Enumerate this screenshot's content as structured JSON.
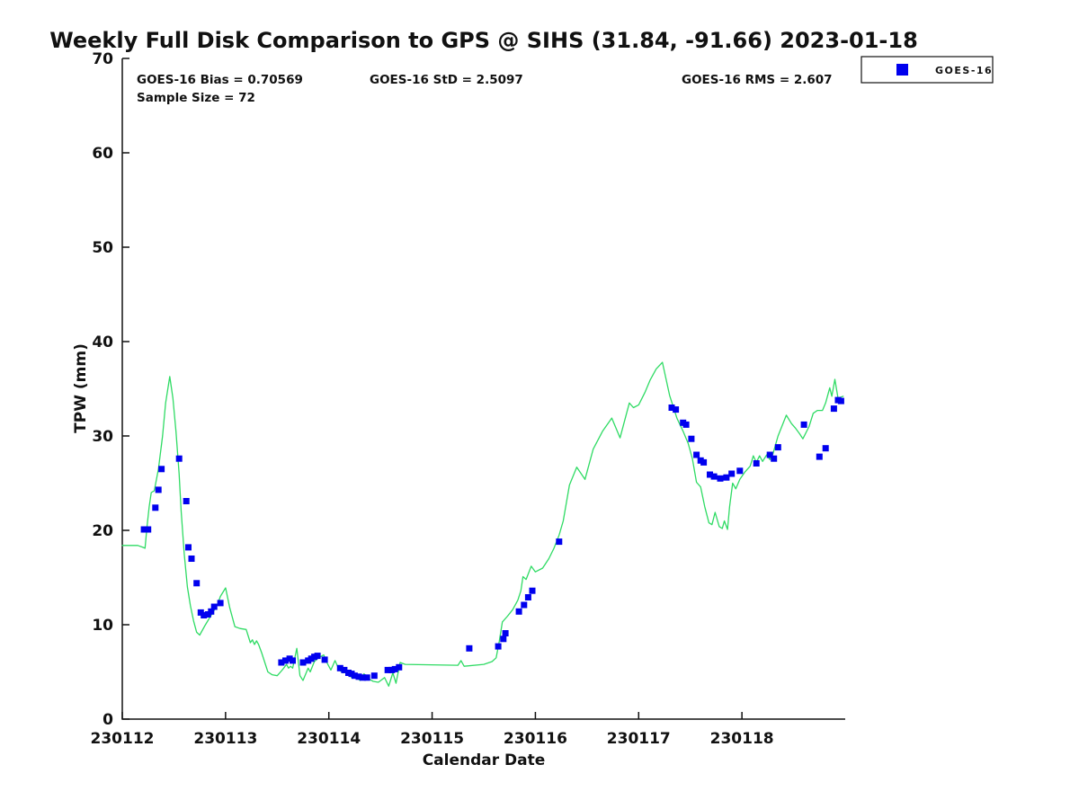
{
  "figure": {
    "stats": {
      "bias": "GOES-16 Bias = 0.70569",
      "std": "GOES-16 StD = 2.5097",
      "rms": "GOES-16 RMS = 2.607",
      "sample_size": "Sample Size = 72"
    },
    "legend": {
      "label": "GOES-16",
      "marker_color": "#0000EE"
    }
  },
  "chart_data": {
    "type": "line+scatter",
    "title": "Weekly Full Disk Comparison to GPS @ SIHS (31.84, -91.66) 2023-01-18",
    "xlabel": "Calendar Date",
    "ylabel": "TPW (mm)",
    "xlim": [
      230112,
      230119
    ],
    "ylim": [
      0,
      70
    ],
    "xticks": [
      230112,
      230113,
      230114,
      230115,
      230116,
      230117,
      230118
    ],
    "yticks": [
      0,
      10,
      20,
      30,
      40,
      50,
      60,
      70
    ],
    "grid": false,
    "legend_position": "top-right-outside",
    "annotations": {
      "bias": "GOES-16 Bias = 0.70569",
      "std": "GOES-16 StD = 2.5097",
      "rms": "GOES-16 RMS = 2.607",
      "sample_size": "Sample Size = 72"
    },
    "series": [
      {
        "name": "GPS",
        "type": "line",
        "color": "#2FDB64",
        "line_width": 1.3,
        "points": [
          [
            230112.0,
            18.4
          ],
          [
            230112.15,
            18.4
          ],
          [
            230112.2,
            18.2
          ],
          [
            230112.22,
            18.1
          ],
          [
            230112.24,
            20.5
          ],
          [
            230112.26,
            22.5
          ],
          [
            230112.28,
            24.0
          ],
          [
            230112.31,
            24.2
          ],
          [
            230112.35,
            26.5
          ],
          [
            230112.39,
            30.0
          ],
          [
            230112.42,
            33.5
          ],
          [
            230112.46,
            36.3
          ],
          [
            230112.49,
            34.0
          ],
          [
            230112.52,
            30.5
          ],
          [
            230112.55,
            26.0
          ],
          [
            230112.57,
            22.0
          ],
          [
            230112.6,
            17.5
          ],
          [
            230112.63,
            14.0
          ],
          [
            230112.66,
            12.0
          ],
          [
            230112.69,
            10.4
          ],
          [
            230112.72,
            9.2
          ],
          [
            230112.75,
            8.9
          ],
          [
            230112.8,
            9.9
          ],
          [
            230112.86,
            11.0
          ],
          [
            230112.92,
            12.1
          ],
          [
            230112.95,
            13.0
          ],
          [
            230113.0,
            13.9
          ],
          [
            230113.04,
            11.8
          ],
          [
            230113.09,
            9.8
          ],
          [
            230113.14,
            9.6
          ],
          [
            230113.2,
            9.5
          ],
          [
            230113.24,
            8.1
          ],
          [
            230113.26,
            8.4
          ],
          [
            230113.28,
            7.9
          ],
          [
            230113.3,
            8.3
          ],
          [
            230113.32,
            7.9
          ],
          [
            230113.35,
            7.0
          ],
          [
            230113.38,
            6.0
          ],
          [
            230113.41,
            5.0
          ],
          [
            230113.45,
            4.7
          ],
          [
            230113.5,
            4.6
          ],
          [
            230113.54,
            5.1
          ],
          [
            230113.57,
            5.5
          ],
          [
            230113.59,
            5.8
          ],
          [
            230113.61,
            5.4
          ],
          [
            230113.63,
            5.6
          ],
          [
            230113.65,
            5.4
          ],
          [
            230113.69,
            7.5
          ],
          [
            230113.72,
            4.6
          ],
          [
            230113.75,
            4.1
          ],
          [
            230113.8,
            5.4
          ],
          [
            230113.82,
            5.0
          ],
          [
            230113.86,
            6.1
          ],
          [
            230113.9,
            6.5
          ],
          [
            230113.95,
            6.8
          ],
          [
            230113.99,
            5.8
          ],
          [
            230114.02,
            5.2
          ],
          [
            230114.06,
            6.2
          ],
          [
            230114.1,
            5.2
          ],
          [
            230114.14,
            4.9
          ],
          [
            230114.18,
            5.0
          ],
          [
            230114.22,
            4.4
          ],
          [
            230114.26,
            4.6
          ],
          [
            230114.3,
            4.1
          ],
          [
            230114.34,
            4.8
          ],
          [
            230114.38,
            4.3
          ],
          [
            230114.43,
            4.0
          ],
          [
            230114.48,
            3.9
          ],
          [
            230114.54,
            4.4
          ],
          [
            230114.58,
            3.5
          ],
          [
            230114.62,
            4.9
          ],
          [
            230114.65,
            3.8
          ],
          [
            230114.69,
            6.0
          ],
          [
            230114.74,
            5.8
          ],
          [
            230115.25,
            5.7
          ],
          [
            230115.28,
            6.2
          ],
          [
            230115.31,
            5.6
          ],
          [
            230115.5,
            5.8
          ],
          [
            230115.58,
            6.1
          ],
          [
            230115.62,
            6.5
          ],
          [
            230115.65,
            8.2
          ],
          [
            230115.68,
            10.3
          ],
          [
            230115.73,
            10.9
          ],
          [
            230115.78,
            11.6
          ],
          [
            230115.83,
            12.6
          ],
          [
            230115.86,
            13.6
          ],
          [
            230115.88,
            15.1
          ],
          [
            230115.91,
            14.8
          ],
          [
            230115.96,
            16.2
          ],
          [
            230116.0,
            15.6
          ],
          [
            230116.07,
            16.0
          ],
          [
            230116.13,
            17.0
          ],
          [
            230116.18,
            18.1
          ],
          [
            230116.23,
            19.5
          ],
          [
            230116.27,
            21.0
          ],
          [
            230116.33,
            24.8
          ],
          [
            230116.4,
            26.7
          ],
          [
            230116.48,
            25.4
          ],
          [
            230116.56,
            28.6
          ],
          [
            230116.65,
            30.5
          ],
          [
            230116.74,
            31.9
          ],
          [
            230116.82,
            29.8
          ],
          [
            230116.91,
            33.5
          ],
          [
            230116.95,
            33.0
          ],
          [
            230117.0,
            33.3
          ],
          [
            230117.06,
            34.6
          ],
          [
            230117.11,
            35.9
          ],
          [
            230117.17,
            37.1
          ],
          [
            230117.23,
            37.8
          ],
          [
            230117.3,
            34.3
          ],
          [
            230117.37,
            31.9
          ],
          [
            230117.43,
            30.5
          ],
          [
            230117.48,
            29.2
          ],
          [
            230117.52,
            27.6
          ],
          [
            230117.56,
            25.1
          ],
          [
            230117.6,
            24.6
          ],
          [
            230117.64,
            22.5
          ],
          [
            230117.68,
            20.8
          ],
          [
            230117.71,
            20.6
          ],
          [
            230117.74,
            21.9
          ],
          [
            230117.78,
            20.4
          ],
          [
            230117.81,
            20.2
          ],
          [
            230117.83,
            21.0
          ],
          [
            230117.86,
            20.1
          ],
          [
            230117.88,
            22.5
          ],
          [
            230117.91,
            25.0
          ],
          [
            230117.94,
            24.4
          ],
          [
            230117.98,
            25.4
          ],
          [
            230118.03,
            26.2
          ],
          [
            230118.08,
            26.8
          ],
          [
            230118.11,
            27.9
          ],
          [
            230118.14,
            27.2
          ],
          [
            230118.17,
            27.9
          ],
          [
            230118.2,
            27.3
          ],
          [
            230118.24,
            28.0
          ],
          [
            230118.27,
            27.5
          ],
          [
            230118.3,
            28.1
          ],
          [
            230118.35,
            30.0
          ],
          [
            230118.43,
            32.2
          ],
          [
            230118.48,
            31.3
          ],
          [
            230118.52,
            30.8
          ],
          [
            230118.56,
            30.2
          ],
          [
            230118.59,
            29.7
          ],
          [
            230118.65,
            31.0
          ],
          [
            230118.69,
            32.4
          ],
          [
            230118.73,
            32.7
          ],
          [
            230118.78,
            32.7
          ],
          [
            230118.81,
            33.5
          ],
          [
            230118.85,
            35.1
          ],
          [
            230118.87,
            34.2
          ],
          [
            230118.9,
            36.0
          ],
          [
            230118.93,
            34.0
          ],
          [
            230118.98,
            34.2
          ]
        ]
      },
      {
        "name": "GOES-16",
        "type": "scatter",
        "marker": "square",
        "marker_size": 7,
        "color": "#0000EE",
        "points": [
          [
            230112.21,
            20.1
          ],
          [
            230112.25,
            20.1
          ],
          [
            230112.32,
            22.4
          ],
          [
            230112.35,
            24.3
          ],
          [
            230112.38,
            26.5
          ],
          [
            230112.55,
            27.6
          ],
          [
            230112.62,
            23.1
          ],
          [
            230112.64,
            18.2
          ],
          [
            230112.67,
            17.0
          ],
          [
            230112.72,
            14.4
          ],
          [
            230112.76,
            11.3
          ],
          [
            230112.79,
            11.0
          ],
          [
            230112.83,
            11.1
          ],
          [
            230112.86,
            11.4
          ],
          [
            230112.89,
            11.9
          ],
          [
            230112.95,
            12.3
          ],
          [
            230113.54,
            6.0
          ],
          [
            230113.58,
            6.2
          ],
          [
            230113.62,
            6.4
          ],
          [
            230113.65,
            6.2
          ],
          [
            230113.75,
            6.0
          ],
          [
            230113.8,
            6.2
          ],
          [
            230113.83,
            6.4
          ],
          [
            230113.86,
            6.6
          ],
          [
            230113.89,
            6.7
          ],
          [
            230113.96,
            6.3
          ],
          [
            230114.11,
            5.4
          ],
          [
            230114.15,
            5.2
          ],
          [
            230114.19,
            4.9
          ],
          [
            230114.22,
            4.8
          ],
          [
            230114.25,
            4.6
          ],
          [
            230114.29,
            4.5
          ],
          [
            230114.33,
            4.4
          ],
          [
            230114.37,
            4.4
          ],
          [
            230114.44,
            4.6
          ],
          [
            230114.57,
            5.2
          ],
          [
            230114.61,
            5.2
          ],
          [
            230114.64,
            5.3
          ],
          [
            230114.68,
            5.5
          ],
          [
            230115.36,
            7.5
          ],
          [
            230115.64,
            7.7
          ],
          [
            230115.69,
            8.5
          ],
          [
            230115.71,
            9.1
          ],
          [
            230115.84,
            11.4
          ],
          [
            230115.89,
            12.1
          ],
          [
            230115.93,
            12.9
          ],
          [
            230115.97,
            13.6
          ],
          [
            230116.23,
            18.8
          ],
          [
            230117.32,
            33.0
          ],
          [
            230117.36,
            32.8
          ],
          [
            230117.43,
            31.4
          ],
          [
            230117.46,
            31.2
          ],
          [
            230117.51,
            29.7
          ],
          [
            230117.56,
            28.0
          ],
          [
            230117.6,
            27.4
          ],
          [
            230117.63,
            27.2
          ],
          [
            230117.69,
            25.9
          ],
          [
            230117.73,
            25.7
          ],
          [
            230117.79,
            25.5
          ],
          [
            230117.85,
            25.6
          ],
          [
            230117.9,
            26.0
          ],
          [
            230117.98,
            26.3
          ],
          [
            230118.14,
            27.1
          ],
          [
            230118.27,
            28.0
          ],
          [
            230118.31,
            27.6
          ],
          [
            230118.35,
            28.8
          ],
          [
            230118.6,
            31.2
          ],
          [
            230118.75,
            27.8
          ],
          [
            230118.81,
            28.7
          ],
          [
            230118.89,
            32.9
          ],
          [
            230118.93,
            33.8
          ],
          [
            230118.96,
            33.7
          ]
        ]
      }
    ]
  }
}
